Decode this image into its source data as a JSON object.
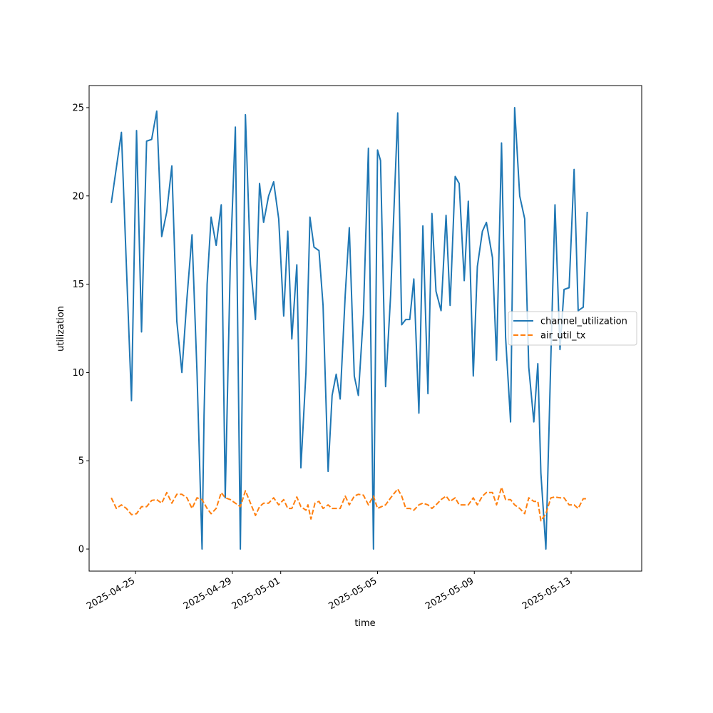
{
  "chart_data": {
    "type": "line",
    "title": "",
    "xlabel": "time",
    "ylabel": "utilization",
    "x_is_datetime": true,
    "xlim": [
      "2025-04-23 02:00",
      "2025-05-15 22:00"
    ],
    "ylim": [
      -1.25,
      26.25
    ],
    "yticks": [
      0,
      5,
      10,
      15,
      20,
      25
    ],
    "xticks": [
      "2025-04-25",
      "2025-04-29",
      "2025-05-01",
      "2025-05-05",
      "2025-05-09",
      "2025-05-13"
    ],
    "grid": false,
    "legend": "center right",
    "series": [
      {
        "name": "channel_utilization",
        "color": "#1f77b4",
        "style": "solid",
        "points": [
          [
            "2025-04-24 00:00",
            19.6
          ],
          [
            "2025-04-24 05:00",
            21.6
          ],
          [
            "2025-04-24 10:00",
            23.6
          ],
          [
            "2025-04-24 15:00",
            16.0
          ],
          [
            "2025-04-24 20:00",
            8.4
          ],
          [
            "2025-04-25 01:00",
            23.7
          ],
          [
            "2025-04-25 06:00",
            12.3
          ],
          [
            "2025-04-25 11:00",
            23.1
          ],
          [
            "2025-04-25 16:00",
            23.2
          ],
          [
            "2025-04-25 21:00",
            24.8
          ],
          [
            "2025-04-26 02:00",
            17.7
          ],
          [
            "2025-04-26 07:00",
            19.1
          ],
          [
            "2025-04-26 12:00",
            21.7
          ],
          [
            "2025-04-26 17:00",
            12.9
          ],
          [
            "2025-04-26 22:00",
            10.0
          ],
          [
            "2025-04-27 03:00",
            14.2
          ],
          [
            "2025-04-27 08:00",
            17.8
          ],
          [
            "2025-04-27 13:00",
            10.0
          ],
          [
            "2025-04-27 18:00",
            0.0
          ],
          [
            "2025-04-27 20:00",
            7.6
          ],
          [
            "2025-04-27 23:00",
            15.0
          ],
          [
            "2025-04-28 03:00",
            18.8
          ],
          [
            "2025-04-28 08:00",
            17.2
          ],
          [
            "2025-04-28 13:00",
            19.5
          ],
          [
            "2025-04-28 17:00",
            2.9
          ],
          [
            "2025-04-28 22:00",
            16.2
          ],
          [
            "2025-04-29 03:00",
            23.9
          ],
          [
            "2025-04-29 08:00",
            0.0
          ],
          [
            "2025-04-29 13:00",
            24.6
          ],
          [
            "2025-04-29 18:00",
            16.1
          ],
          [
            "2025-04-29 23:00",
            13.0
          ],
          [
            "2025-04-30 03:00",
            20.7
          ],
          [
            "2025-04-30 07:00",
            18.5
          ],
          [
            "2025-04-30 12:00",
            20.0
          ],
          [
            "2025-04-30 17:00",
            20.8
          ],
          [
            "2025-04-30 22:00",
            18.7
          ],
          [
            "2025-05-01 03:00",
            13.2
          ],
          [
            "2025-05-01 07:00",
            18.0
          ],
          [
            "2025-05-01 11:00",
            11.9
          ],
          [
            "2025-05-01 16:00",
            16.1
          ],
          [
            "2025-05-01 20:00",
            4.6
          ],
          [
            "2025-05-02 01:00",
            10.0
          ],
          [
            "2025-05-02 05:00",
            18.8
          ],
          [
            "2025-05-02 09:00",
            17.1
          ],
          [
            "2025-05-02 14:00",
            16.9
          ],
          [
            "2025-05-02 18:00",
            13.8
          ],
          [
            "2025-05-02 23:00",
            4.4
          ],
          [
            "2025-05-03 03:00",
            8.7
          ],
          [
            "2025-05-03 07:00",
            9.9
          ],
          [
            "2025-05-03 11:00",
            8.5
          ],
          [
            "2025-05-03 16:00",
            14.4
          ],
          [
            "2025-05-03 20:00",
            18.2
          ],
          [
            "2025-05-04 01:00",
            9.8
          ],
          [
            "2025-05-04 05:00",
            8.7
          ],
          [
            "2025-05-04 10:00",
            13.3
          ],
          [
            "2025-05-04 15:00",
            22.7
          ],
          [
            "2025-05-04 20:00",
            0.0
          ],
          [
            "2025-05-05 00:00",
            22.6
          ],
          [
            "2025-05-05 03:00",
            22.0
          ],
          [
            "2025-05-05 08:00",
            9.2
          ],
          [
            "2025-05-05 13:00",
            14.4
          ],
          [
            "2025-05-05 20:00",
            24.7
          ],
          [
            "2025-05-06 00:00",
            12.7
          ],
          [
            "2025-05-06 04:00",
            13.0
          ],
          [
            "2025-05-06 08:00",
            13.0
          ],
          [
            "2025-05-06 12:00",
            15.3
          ],
          [
            "2025-05-06 17:00",
            7.7
          ],
          [
            "2025-05-06 21:00",
            18.3
          ],
          [
            "2025-05-07 02:00",
            8.8
          ],
          [
            "2025-05-07 06:00",
            19.0
          ],
          [
            "2025-05-07 10:00",
            14.6
          ],
          [
            "2025-05-07 15:00",
            13.5
          ],
          [
            "2025-05-07 20:00",
            18.9
          ],
          [
            "2025-05-08 00:00",
            13.8
          ],
          [
            "2025-05-08 05:00",
            21.1
          ],
          [
            "2025-05-08 09:00",
            20.7
          ],
          [
            "2025-05-08 14:00",
            15.2
          ],
          [
            "2025-05-08 18:00",
            19.7
          ],
          [
            "2025-05-08 23:00",
            9.8
          ],
          [
            "2025-05-09 03:00",
            16.0
          ],
          [
            "2025-05-09 08:00",
            18.0
          ],
          [
            "2025-05-09 12:00",
            18.5
          ],
          [
            "2025-05-09 18:00",
            16.5
          ],
          [
            "2025-05-09 22:00",
            10.7
          ],
          [
            "2025-05-10 03:00",
            23.0
          ],
          [
            "2025-05-10 07:00",
            12.0
          ],
          [
            "2025-05-10 12:00",
            7.2
          ],
          [
            "2025-05-10 16:00",
            25.0
          ],
          [
            "2025-05-10 21:00",
            20.0
          ],
          [
            "2025-05-11 02:00",
            18.7
          ],
          [
            "2025-05-11 06:00",
            10.3
          ],
          [
            "2025-05-11 11:00",
            7.2
          ],
          [
            "2025-05-11 15:00",
            10.5
          ],
          [
            "2025-05-11 18:00",
            4.3
          ],
          [
            "2025-05-11 23:00",
            0.0
          ],
          [
            "2025-05-12 04:00",
            11.0
          ],
          [
            "2025-05-12 08:00",
            19.5
          ],
          [
            "2025-05-12 13:00",
            11.3
          ],
          [
            "2025-05-12 17:00",
            14.7
          ],
          [
            "2025-05-12 22:00",
            14.8
          ],
          [
            "2025-05-13 03:00",
            21.5
          ],
          [
            "2025-05-13 07:00",
            13.5
          ],
          [
            "2025-05-13 12:00",
            13.7
          ],
          [
            "2025-05-13 16:00",
            19.1
          ]
        ]
      },
      {
        "name": "air_util_tx",
        "color": "#ff7f0e",
        "style": "dashed",
        "points": [
          [
            "2025-04-24 00:00",
            2.9
          ],
          [
            "2025-04-24 05:00",
            2.3
          ],
          [
            "2025-04-24 10:00",
            2.5
          ],
          [
            "2025-04-24 15:00",
            2.3
          ],
          [
            "2025-04-24 20:00",
            1.95
          ],
          [
            "2025-04-25 01:00",
            2.0
          ],
          [
            "2025-04-25 06:00",
            2.4
          ],
          [
            "2025-04-25 11:00",
            2.4
          ],
          [
            "2025-04-25 16:00",
            2.75
          ],
          [
            "2025-04-25 21:00",
            2.8
          ],
          [
            "2025-04-26 02:00",
            2.6
          ],
          [
            "2025-04-26 07:00",
            3.2
          ],
          [
            "2025-04-26 12:00",
            2.6
          ],
          [
            "2025-04-26 17:00",
            3.1
          ],
          [
            "2025-04-26 22:00",
            3.1
          ],
          [
            "2025-04-27 03:00",
            2.9
          ],
          [
            "2025-04-27 08:00",
            2.3
          ],
          [
            "2025-04-27 13:00",
            2.9
          ],
          [
            "2025-04-27 18:00",
            2.8
          ],
          [
            "2025-04-27 23:00",
            2.3
          ],
          [
            "2025-04-28 03:00",
            2.0
          ],
          [
            "2025-04-28 08:00",
            2.3
          ],
          [
            "2025-04-28 13:00",
            3.2
          ],
          [
            "2025-04-28 17:00",
            2.9
          ],
          [
            "2025-04-28 22:00",
            2.8
          ],
          [
            "2025-04-29 03:00",
            2.6
          ],
          [
            "2025-04-29 08:00",
            2.4
          ],
          [
            "2025-04-29 13:00",
            3.3
          ],
          [
            "2025-04-29 18:00",
            2.6
          ],
          [
            "2025-04-29 23:00",
            1.9
          ],
          [
            "2025-04-30 03:00",
            2.4
          ],
          [
            "2025-04-30 07:00",
            2.6
          ],
          [
            "2025-04-30 12:00",
            2.6
          ],
          [
            "2025-04-30 17:00",
            2.9
          ],
          [
            "2025-04-30 22:00",
            2.5
          ],
          [
            "2025-05-01 03:00",
            2.8
          ],
          [
            "2025-05-01 07:00",
            2.3
          ],
          [
            "2025-05-01 11:00",
            2.3
          ],
          [
            "2025-05-01 16:00",
            2.95
          ],
          [
            "2025-05-01 20:00",
            2.4
          ],
          [
            "2025-05-02 01:00",
            2.2
          ],
          [
            "2025-05-02 03:00",
            2.5
          ],
          [
            "2025-05-02 06:00",
            1.7
          ],
          [
            "2025-05-02 10:00",
            2.6
          ],
          [
            "2025-05-02 14:00",
            2.7
          ],
          [
            "2025-05-02 18:00",
            2.3
          ],
          [
            "2025-05-02 23:00",
            2.5
          ],
          [
            "2025-05-03 03:00",
            2.3
          ],
          [
            "2025-05-03 07:00",
            2.3
          ],
          [
            "2025-05-03 11:00",
            2.3
          ],
          [
            "2025-05-03 16:00",
            3.0
          ],
          [
            "2025-05-03 20:00",
            2.5
          ],
          [
            "2025-05-04 01:00",
            3.0
          ],
          [
            "2025-05-04 05:00",
            3.1
          ],
          [
            "2025-05-04 10:00",
            3.05
          ],
          [
            "2025-05-04 15:00",
            2.5
          ],
          [
            "2025-05-04 20:00",
            3.0
          ],
          [
            "2025-05-05 00:00",
            2.3
          ],
          [
            "2025-05-05 04:00",
            2.4
          ],
          [
            "2025-05-05 08:00",
            2.5
          ],
          [
            "2025-05-05 13:00",
            2.9
          ],
          [
            "2025-05-05 20:00",
            3.4
          ],
          [
            "2025-05-06 00:00",
            3.0
          ],
          [
            "2025-05-06 04:00",
            2.3
          ],
          [
            "2025-05-06 08:00",
            2.3
          ],
          [
            "2025-05-06 12:00",
            2.2
          ],
          [
            "2025-05-06 17:00",
            2.5
          ],
          [
            "2025-05-06 21:00",
            2.6
          ],
          [
            "2025-05-07 02:00",
            2.5
          ],
          [
            "2025-05-07 06:00",
            2.3
          ],
          [
            "2025-05-07 10:00",
            2.5
          ],
          [
            "2025-05-07 15:00",
            2.8
          ],
          [
            "2025-05-07 20:00",
            3.0
          ],
          [
            "2025-05-08 00:00",
            2.7
          ],
          [
            "2025-05-08 05:00",
            2.9
          ],
          [
            "2025-05-08 09:00",
            2.5
          ],
          [
            "2025-05-08 14:00",
            2.5
          ],
          [
            "2025-05-08 18:00",
            2.5
          ],
          [
            "2025-05-08 23:00",
            2.9
          ],
          [
            "2025-05-09 03:00",
            2.5
          ],
          [
            "2025-05-09 08:00",
            3.0
          ],
          [
            "2025-05-09 12:00",
            3.2
          ],
          [
            "2025-05-09 18:00",
            3.2
          ],
          [
            "2025-05-09 22:00",
            2.5
          ],
          [
            "2025-05-10 03:00",
            3.5
          ],
          [
            "2025-05-10 07:00",
            2.8
          ],
          [
            "2025-05-10 12:00",
            2.8
          ],
          [
            "2025-05-10 16:00",
            2.5
          ],
          [
            "2025-05-10 21:00",
            2.3
          ],
          [
            "2025-05-11 02:00",
            2.0
          ],
          [
            "2025-05-11 06:00",
            2.9
          ],
          [
            "2025-05-11 11:00",
            2.7
          ],
          [
            "2025-05-11 15:00",
            2.7
          ],
          [
            "2025-05-11 18:00",
            1.6
          ],
          [
            "2025-05-11 23:00",
            2.0
          ],
          [
            "2025-05-12 04:00",
            2.9
          ],
          [
            "2025-05-12 08:00",
            2.95
          ],
          [
            "2025-05-12 13:00",
            2.9
          ],
          [
            "2025-05-12 17:00",
            2.9
          ],
          [
            "2025-05-12 22:00",
            2.5
          ],
          [
            "2025-05-13 03:00",
            2.5
          ],
          [
            "2025-05-13 07:00",
            2.3
          ],
          [
            "2025-05-13 12:00",
            2.85
          ],
          [
            "2025-05-13 16:00",
            2.85
          ]
        ]
      }
    ]
  }
}
